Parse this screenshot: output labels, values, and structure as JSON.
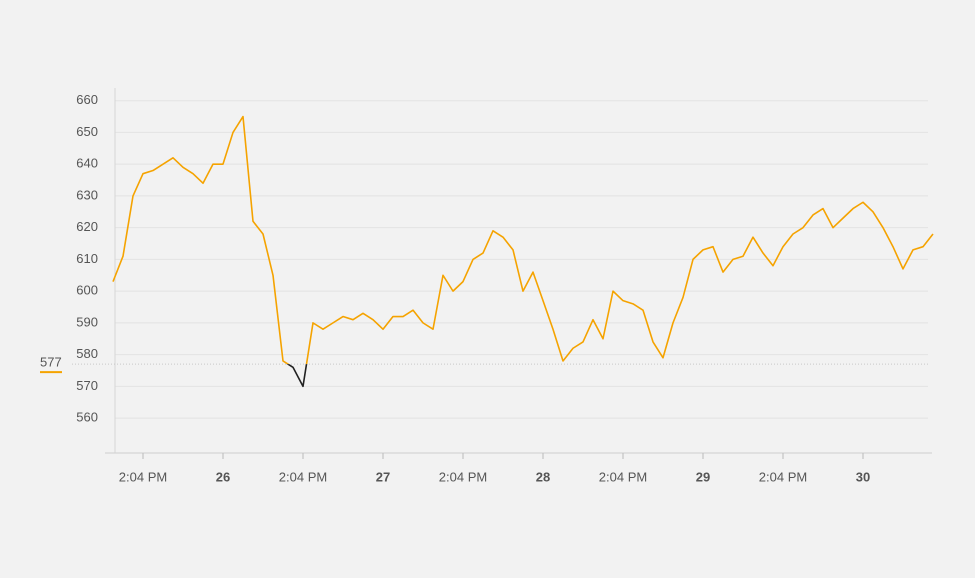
{
  "chart_data": {
    "type": "line",
    "categories": [
      null,
      null,
      null,
      "2:04 PM",
      null,
      null,
      null,
      null,
      null,
      null,
      null,
      "26",
      null,
      null,
      null,
      null,
      null,
      null,
      null,
      "2:04 PM",
      null,
      null,
      null,
      null,
      null,
      null,
      null,
      "27",
      null,
      null,
      null,
      null,
      null,
      null,
      null,
      "2:04 PM",
      null,
      null,
      null,
      null,
      null,
      null,
      null,
      "28",
      null,
      null,
      null,
      null,
      null,
      null,
      null,
      "2:04 PM",
      null,
      null,
      null,
      null,
      null,
      null,
      null,
      "29",
      null,
      null,
      null,
      null,
      null,
      null,
      null,
      "2:04 PM",
      null,
      null,
      null,
      null,
      null,
      null,
      null,
      "30",
      null,
      null,
      null,
      null,
      null,
      null,
      null
    ],
    "values": [
      603,
      611,
      630,
      637,
      638,
      640,
      642,
      639,
      637,
      634,
      640,
      640,
      650,
      655,
      622,
      618,
      605,
      578,
      576,
      570,
      590,
      588,
      590,
      592,
      591,
      593,
      591,
      588,
      592,
      592,
      594,
      590,
      588,
      605,
      600,
      603,
      610,
      612,
      619,
      617,
      613,
      600,
      606,
      597,
      588,
      578,
      582,
      584,
      591,
      585,
      600,
      597,
      596,
      594,
      584,
      579,
      590,
      598,
      610,
      613,
      614,
      606,
      610,
      611,
      617,
      612,
      608,
      614,
      618,
      620,
      624,
      626,
      620,
      623,
      626,
      628,
      625,
      620,
      614,
      607,
      613,
      614,
      618
    ],
    "color": "#f5a300",
    "below_color": "#222222",
    "reference_line": 577,
    "ylim": [
      549,
      664
    ],
    "yticks": [
      560,
      570,
      580,
      590,
      600,
      610,
      620,
      630,
      640,
      650,
      660
    ],
    "grid": true
  }
}
